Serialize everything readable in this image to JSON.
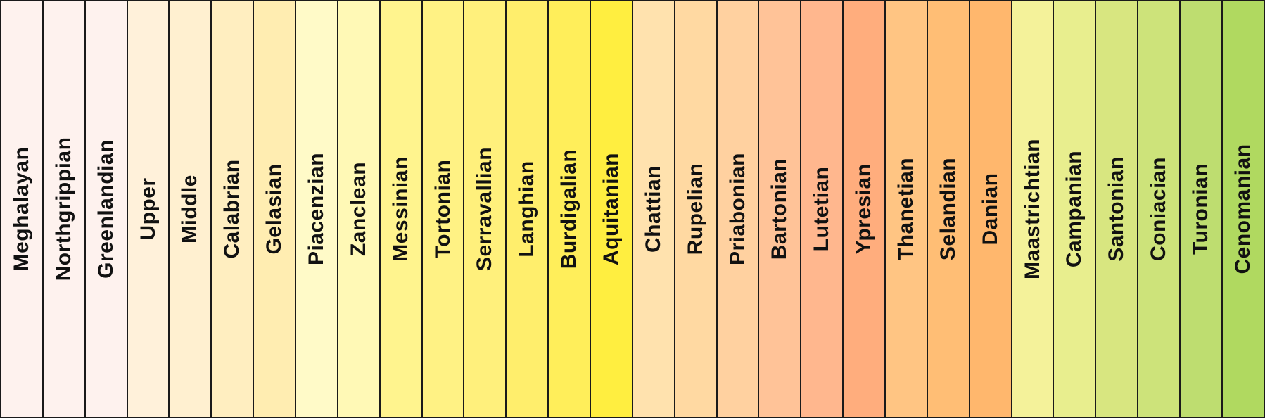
{
  "stages": [
    {
      "name": "Meghalayan",
      "color": "#FEF2EE"
    },
    {
      "name": "Northgrippian",
      "color": "#FEF2EE"
    },
    {
      "name": "Greenlandian",
      "color": "#FEF2EE"
    },
    {
      "name": "Upper",
      "color": "#FFF1DA"
    },
    {
      "name": "Middle",
      "color": "#FFF0D0"
    },
    {
      "name": "Calabrian",
      "color": "#FFEEC0"
    },
    {
      "name": "Gelasian",
      "color": "#FFEDB1"
    },
    {
      "name": "Piacenzian",
      "color": "#FFFAC8"
    },
    {
      "name": "Zanclean",
      "color": "#FFF9B6"
    },
    {
      "name": "Messinian",
      "color": "#FFF48E"
    },
    {
      "name": "Tortonian",
      "color": "#FFF284"
    },
    {
      "name": "Serravallian",
      "color": "#FFF07C"
    },
    {
      "name": "Langhian",
      "color": "#FFEE6C"
    },
    {
      "name": "Burdigalian",
      "color": "#FFEE5A"
    },
    {
      "name": "Aquitanian",
      "color": "#FFEE40"
    },
    {
      "name": "Chattian",
      "color": "#FFE2AE"
    },
    {
      "name": "Rupelian",
      "color": "#FFD9A2"
    },
    {
      "name": "Priabonian",
      "color": "#FFD1A0"
    },
    {
      "name": "Bartonian",
      "color": "#FFC398"
    },
    {
      "name": "Lutetian",
      "color": "#FFB78E"
    },
    {
      "name": "Ypresian",
      "color": "#FFAD7D"
    },
    {
      "name": "Thanetian",
      "color": "#FFC583"
    },
    {
      "name": "Selandian",
      "color": "#FFBE75"
    },
    {
      "name": "Danian",
      "color": "#FFB76D"
    },
    {
      "name": "Maastrichtian",
      "color": "#F4F29A"
    },
    {
      "name": "Campanian",
      "color": "#E8EE8E"
    },
    {
      "name": "Santonian",
      "color": "#D8E680"
    },
    {
      "name": "Coniacian",
      "color": "#CDE37A"
    },
    {
      "name": "Turonian",
      "color": "#BEDD70"
    },
    {
      "name": "Cenomanian",
      "color": "#B0D960"
    }
  ]
}
